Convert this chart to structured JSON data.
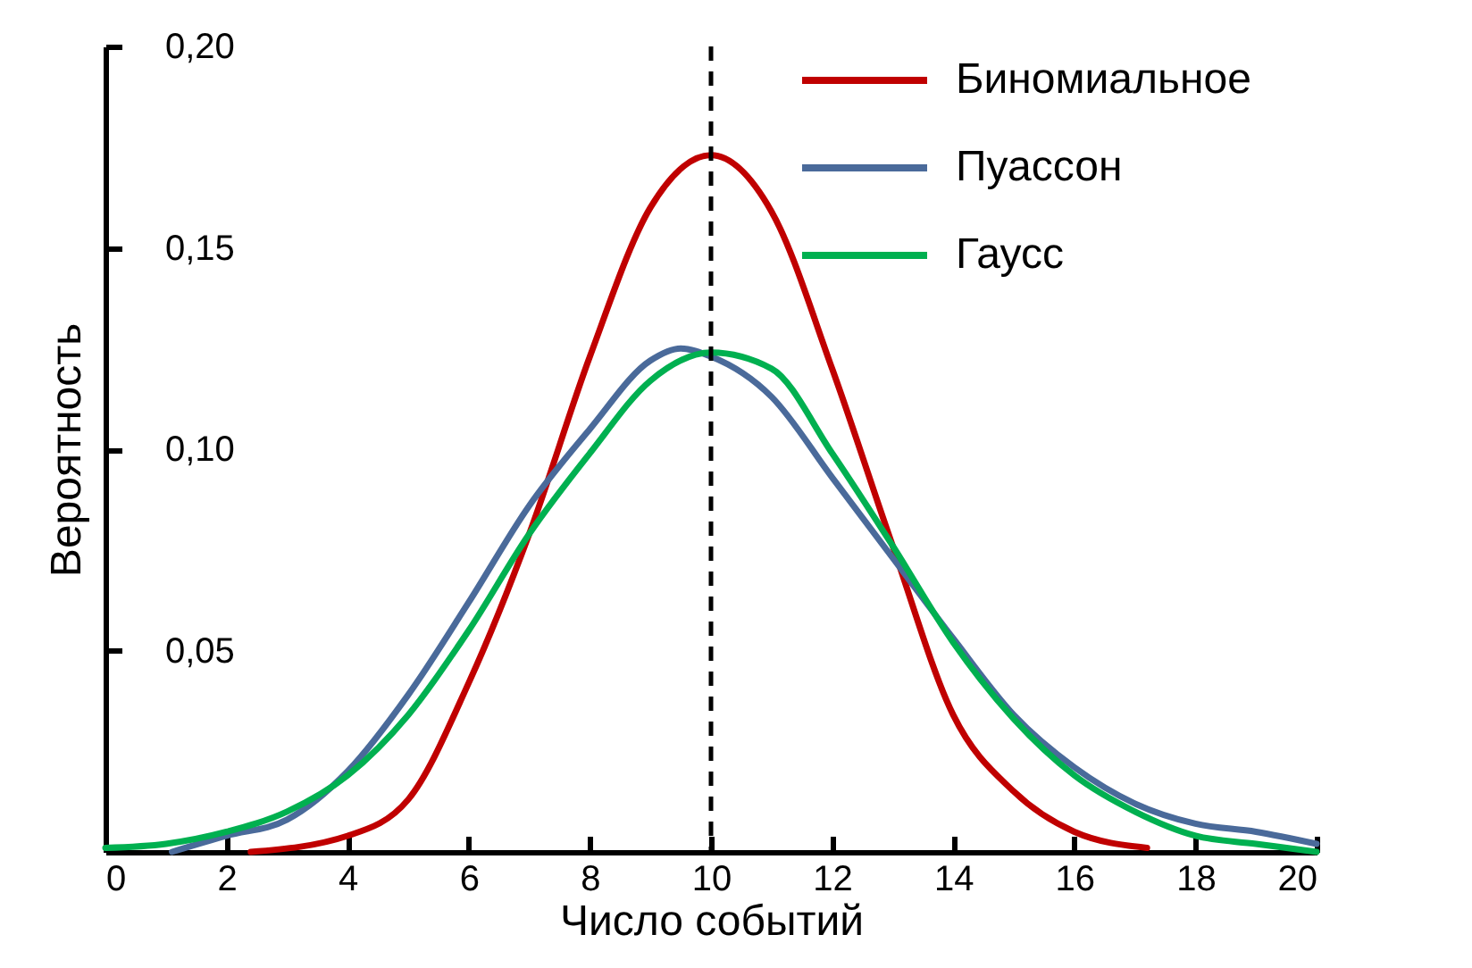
{
  "chart_data": {
    "type": "line",
    "xlabel": "Число событий",
    "ylabel": "Вероятность",
    "xlim": [
      0,
      20
    ],
    "xticks": [
      0,
      2,
      4,
      6,
      8,
      10,
      12,
      14,
      16,
      18,
      20
    ],
    "ylim": [
      0,
      0.2
    ],
    "yticks": [
      {
        "value": 0.05,
        "label": "0,05"
      },
      {
        "value": 0.1,
        "label": "0,10"
      },
      {
        "value": 0.15,
        "label": "0,15"
      },
      {
        "value": 0.2,
        "label": "0,20"
      }
    ],
    "grid": false,
    "legend": "top right",
    "marker": "none",
    "line_style": "solid",
    "ref_lines": [
      {
        "axis": "x",
        "value": 10,
        "color": "#000000",
        "line_style": "dashed"
      }
    ],
    "series": [
      {
        "name": "Биномиальное",
        "color": "#c00000",
        "x": [
          2.4,
          4,
          5,
          6,
          7,
          8,
          9,
          10,
          11,
          12,
          13,
          14,
          15,
          16,
          17.2
        ],
        "values": [
          0,
          0.004,
          0.013,
          0.042,
          0.079,
          0.123,
          0.16,
          0.173,
          0.159,
          0.12,
          0.076,
          0.034,
          0.015,
          0.005,
          0.001
        ]
      },
      {
        "name": "Пуассон",
        "color": "#4a6a9a",
        "x": [
          1.1,
          2,
          3,
          4,
          5,
          6,
          7,
          8,
          9,
          9.5,
          10,
          11,
          12,
          13,
          14,
          15,
          16,
          17,
          18,
          19,
          20
        ],
        "values": [
          0,
          0.004,
          0.008,
          0.02,
          0.039,
          0.062,
          0.086,
          0.105,
          0.122,
          0.125,
          0.123,
          0.113,
          0.093,
          0.073,
          0.053,
          0.034,
          0.021,
          0.012,
          0.007,
          0.005,
          0.002
        ]
      },
      {
        "name": "Гаусс",
        "color": "#00b050",
        "x": [
          0,
          1,
          2,
          3,
          4,
          5,
          6,
          7,
          8,
          9,
          10,
          11,
          12,
          13,
          14,
          15,
          16,
          17,
          18,
          19,
          20
        ],
        "values": [
          0.001,
          0.002,
          0.005,
          0.01,
          0.019,
          0.034,
          0.055,
          0.079,
          0.099,
          0.117,
          0.124,
          0.12,
          0.099,
          0.076,
          0.052,
          0.033,
          0.019,
          0.01,
          0.004,
          0.002,
          0
        ]
      }
    ]
  }
}
